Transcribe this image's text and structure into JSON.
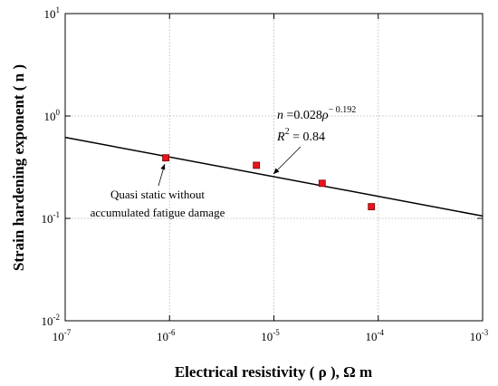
{
  "chart_data": {
    "type": "scatter",
    "xscale": "log",
    "yscale": "log",
    "xlim": [
      1e-07,
      0.001
    ],
    "ylim": [
      0.01,
      10
    ],
    "grid": true,
    "xlabel": "Electrical resistivity ( ρ ), Ω m",
    "ylabel": "Strain hardening exponent ( n )",
    "x_ticks": [
      {
        "value": 1e-07,
        "base": "10",
        "exp": "-7"
      },
      {
        "value": 1e-06,
        "base": "10",
        "exp": "-6"
      },
      {
        "value": 1e-05,
        "base": "10",
        "exp": "-5"
      },
      {
        "value": 0.0001,
        "base": "10",
        "exp": "-4"
      },
      {
        "value": 0.001,
        "base": "10",
        "exp": "-3"
      }
    ],
    "y_ticks": [
      {
        "value": 0.01,
        "base": "10",
        "exp": "-2"
      },
      {
        "value": 0.1,
        "base": "10",
        "exp": "-1"
      },
      {
        "value": 1,
        "base": "10",
        "exp": "0"
      },
      {
        "value": 10,
        "base": "10",
        "exp": "1"
      }
    ],
    "series": [
      {
        "type": "scatter",
        "marker": "square",
        "color": "#e8141c",
        "points": [
          {
            "x": 9.2e-07,
            "y": 0.39
          },
          {
            "x": 6.8e-06,
            "y": 0.33
          },
          {
            "x": 2.9e-05,
            "y": 0.22
          },
          {
            "x": 8.6e-05,
            "y": 0.13
          }
        ]
      },
      {
        "type": "line",
        "color": "#000000",
        "fit": {
          "a": 0.028,
          "b": -0.192
        },
        "x_range": [
          1e-07,
          0.001
        ]
      }
    ],
    "annotations": {
      "equation": {
        "n": "n",
        "coef": " =0.028",
        "rho": "ρ",
        "exp": "− 0.192"
      },
      "r2": {
        "r": "R",
        "sq": "2",
        "value": " = 0.84"
      },
      "note": [
        "Quasi static without",
        "accumulated fatigue damage"
      ]
    }
  }
}
